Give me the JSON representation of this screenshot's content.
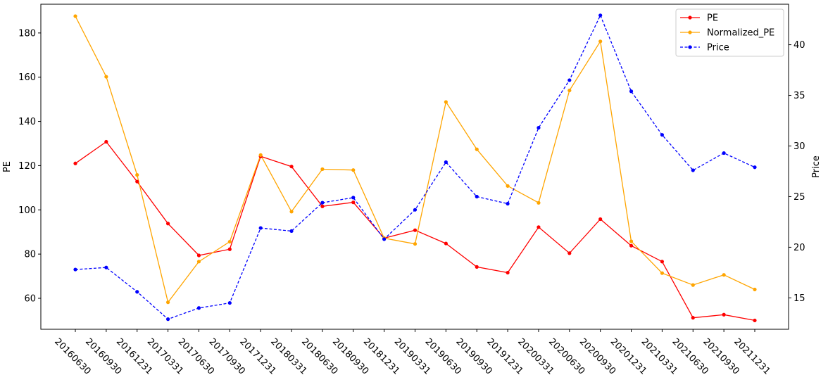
{
  "chart_data": {
    "type": "line",
    "categories": [
      "20160630",
      "20160930",
      "20161231",
      "20170331",
      "20170630",
      "20170930",
      "20171231",
      "20180331",
      "20180630",
      "20180930",
      "20181231",
      "20190331",
      "20190630",
      "20190930",
      "20191231",
      "20200331",
      "20200630",
      "20200930",
      "20201231",
      "20210331",
      "20210630",
      "20210930",
      "20211231"
    ],
    "ylabel": "PE",
    "y2label": "Price",
    "ylim": [
      46,
      193
    ],
    "y2lim": [
      11.9,
      44.0
    ],
    "yticks": [
      "60",
      "80",
      "100",
      "120",
      "140",
      "160",
      "180"
    ],
    "y2ticks": [
      "15",
      "20",
      "25",
      "30",
      "35",
      "40"
    ],
    "legend_position": "top-right",
    "grid": false,
    "series": [
      {
        "name": "PE",
        "axis": "left",
        "color": "#ff0000",
        "linestyle": "solid",
        "values": [
          121.0,
          130.8,
          112.8,
          93.8,
          79.4,
          82.2,
          124.2,
          119.6,
          101.6,
          103.4,
          87.2,
          90.8,
          84.8,
          74.2,
          71.6,
          92.2,
          80.4,
          95.8,
          83.8,
          76.6,
          51.2,
          52.6,
          50.0
        ]
      },
      {
        "name": "Normalized_PE",
        "axis": "left",
        "color": "#ffa500",
        "linestyle": "solid",
        "values": [
          187.6,
          160.2,
          115.8,
          58.2,
          76.6,
          85.6,
          124.8,
          99.2,
          118.4,
          118.0,
          87.2,
          84.6,
          148.8,
          127.4,
          110.8,
          103.2,
          154.0,
          176.2,
          85.8,
          71.4,
          66.0,
          70.6,
          64.0
        ]
      },
      {
        "name": "Price",
        "axis": "right",
        "color": "#0000ff",
        "linestyle": "dashed",
        "values": [
          17.8,
          18.0,
          15.6,
          12.9,
          14.0,
          14.5,
          21.9,
          21.6,
          24.4,
          24.9,
          20.8,
          23.7,
          28.4,
          25.0,
          24.3,
          31.8,
          36.5,
          42.9,
          35.4,
          31.1,
          27.6,
          29.3,
          27.9
        ]
      }
    ]
  }
}
